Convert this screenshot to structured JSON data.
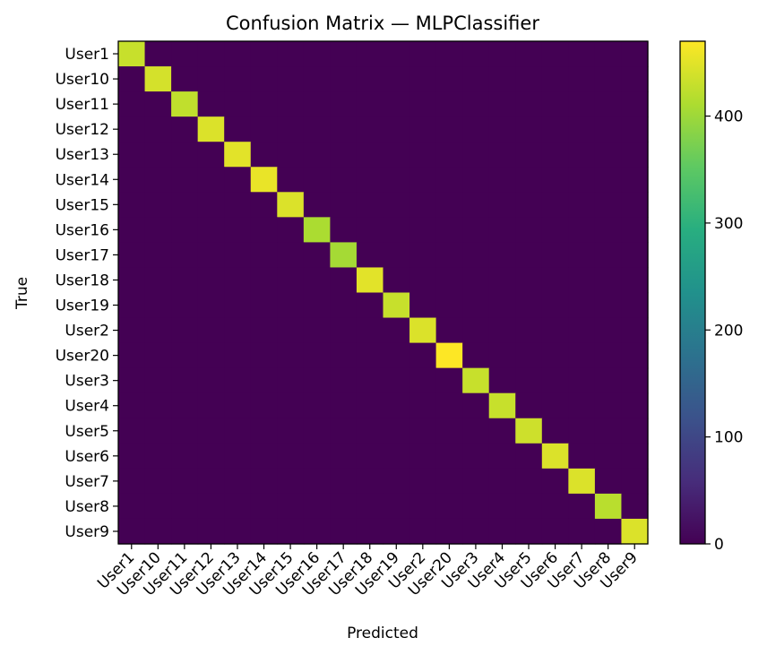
{
  "chart_data": {
    "type": "heatmap",
    "title": "Confusion Matrix — MLPClassifier",
    "xlabel": "Predicted",
    "ylabel": "True",
    "labels": [
      "User1",
      "User10",
      "User11",
      "User12",
      "User13",
      "User14",
      "User15",
      "User16",
      "User17",
      "User18",
      "User19",
      "User2",
      "User20",
      "User3",
      "User4",
      "User5",
      "User6",
      "User7",
      "User8",
      "User9"
    ],
    "diagonal_values": [
      430,
      440,
      425,
      445,
      450,
      455,
      445,
      410,
      405,
      450,
      430,
      445,
      470,
      430,
      430,
      435,
      445,
      445,
      420,
      445
    ],
    "off_diagonal_max": 5,
    "colormap": "viridis",
    "color_range": [
      0,
      470
    ],
    "colorbar_ticks": [
      0,
      100,
      200,
      300,
      400
    ],
    "grid": false
  }
}
